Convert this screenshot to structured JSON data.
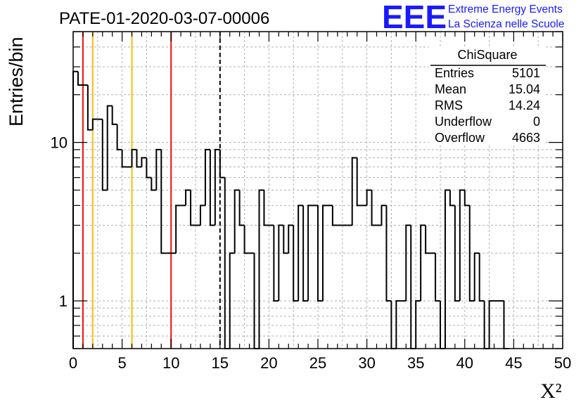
{
  "title": "PATE-01-2020-03-07-00006",
  "logo": {
    "mark": "EEE",
    "line1": "Extreme Energy Events",
    "line2": "La Scienza nelle Scuole"
  },
  "stats": {
    "name": "ChiSquare",
    "rows": [
      {
        "label": "Entries",
        "value": "5101"
      },
      {
        "label": "Mean",
        "value": "15.04"
      },
      {
        "label": "RMS",
        "value": "14.24"
      },
      {
        "label": "Underflow",
        "value": "0"
      },
      {
        "label": "Overflow",
        "value": "4663"
      }
    ]
  },
  "colors": {
    "histogram": "#000000",
    "red_line": "#e8261d",
    "yellow_line": "#f5c324",
    "grid": "#b0b0b0",
    "logo": "#1a1aff"
  },
  "chart_data": {
    "type": "histogram",
    "title": "PATE-01-2020-03-07-00006",
    "xlabel": "X²",
    "ylabel": "Entries/bin",
    "xlim": [
      0,
      50
    ],
    "ylim": [
      0.5,
      50
    ],
    "yscale": "log",
    "grid": true,
    "bin_width": 0.5,
    "bin_start": 0,
    "values": [
      28,
      23,
      23,
      12,
      14,
      14,
      5,
      17,
      13,
      9,
      7,
      7,
      9,
      7,
      8,
      6,
      5,
      9,
      2,
      2,
      2,
      4,
      4,
      5,
      3,
      3,
      4,
      9,
      3,
      9,
      6,
      0,
      2,
      5,
      3,
      2,
      2,
      0,
      5,
      3,
      3,
      1,
      3,
      2,
      3,
      1,
      4,
      1,
      4,
      4,
      1,
      4,
      4,
      3,
      3,
      3,
      3,
      8,
      4,
      4,
      5,
      3,
      3,
      4,
      1,
      0,
      1,
      1,
      3,
      0,
      1,
      3,
      2,
      2,
      1,
      0,
      5,
      4,
      1,
      5,
      4,
      1,
      2,
      1,
      0,
      1,
      1,
      1,
      0
    ],
    "vertical_lines": [
      {
        "x": 1,
        "color": "red",
        "style": "solid"
      },
      {
        "x": 2,
        "color": "yellow",
        "style": "solid"
      },
      {
        "x": 6,
        "color": "yellow",
        "style": "solid"
      },
      {
        "x": 10,
        "color": "red",
        "style": "solid"
      },
      {
        "x": 15,
        "color": "black",
        "style": "dashed"
      }
    ],
    "x_ticks": [
      "0",
      "5",
      "10",
      "15",
      "20",
      "25",
      "30",
      "35",
      "40",
      "45",
      "50"
    ],
    "y_ticks": [
      "1",
      "10"
    ]
  }
}
